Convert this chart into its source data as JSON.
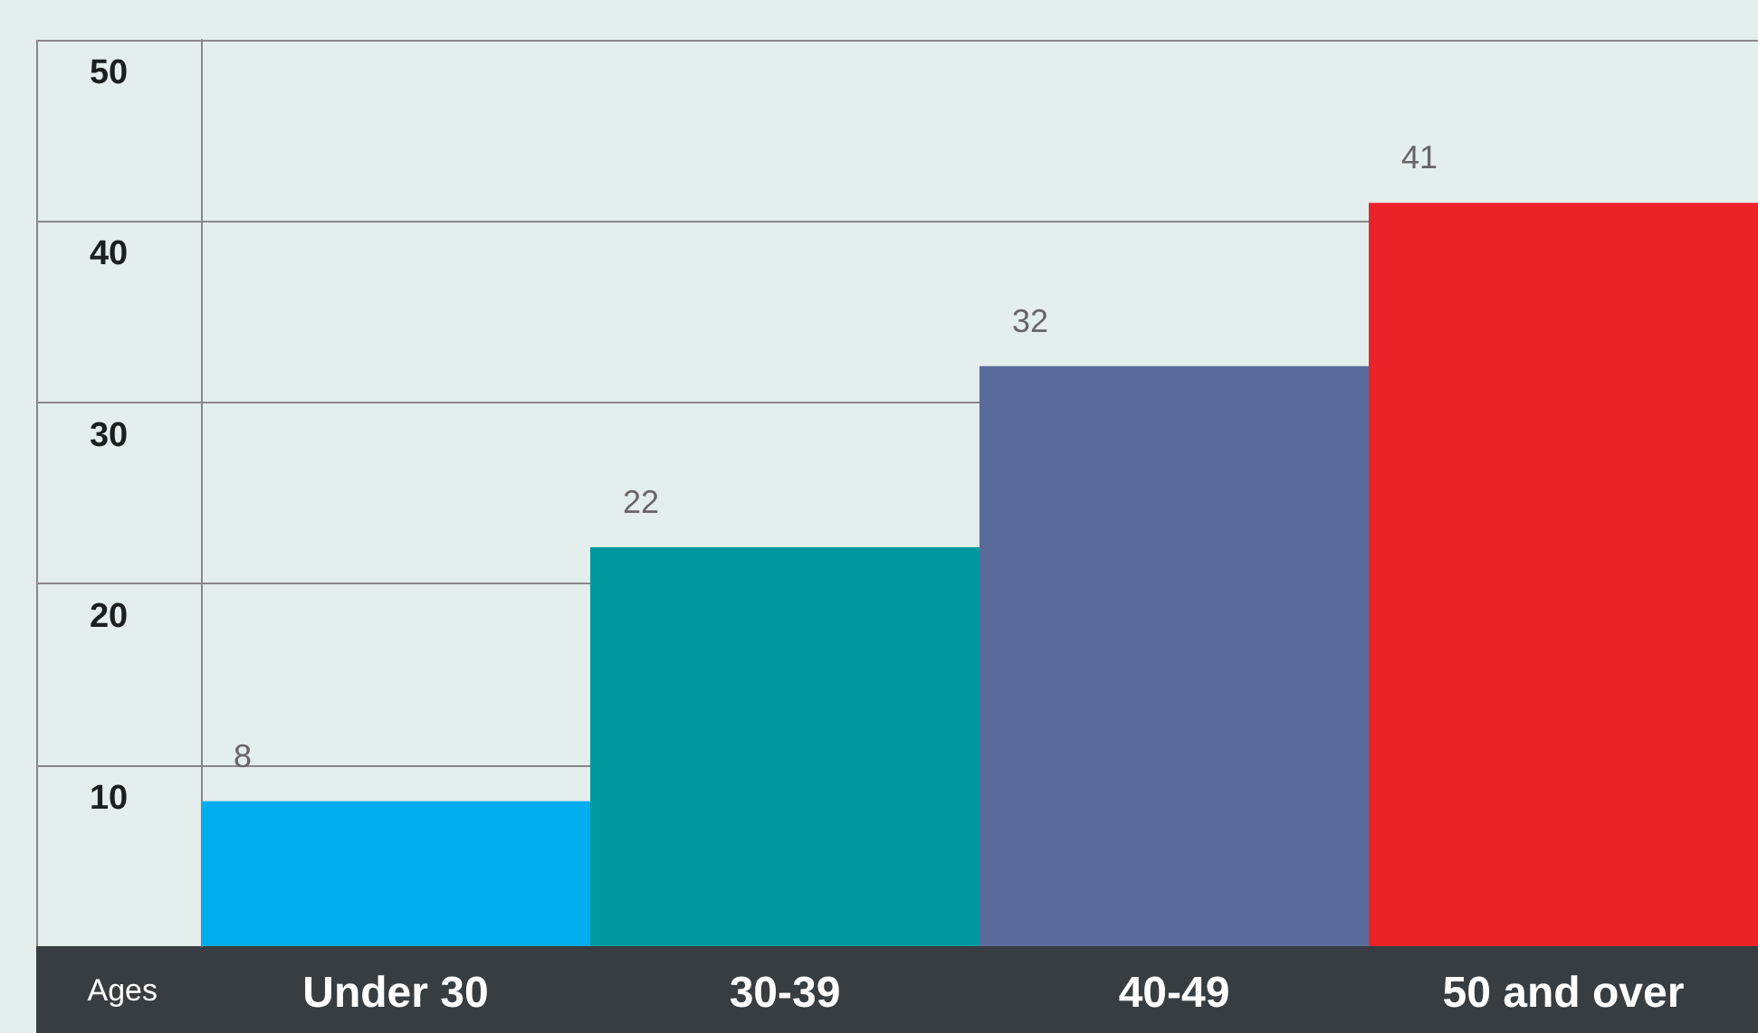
{
  "chart_data": {
    "type": "bar",
    "xlabel": "Ages",
    "categories": [
      "Under 30",
      "30-39",
      "40-49",
      "50 and over"
    ],
    "values": [
      8,
      22,
      32,
      41
    ],
    "colors": [
      "#00adee",
      "#0099a0",
      "#5b6b9c",
      "#ec2229"
    ],
    "ylim": [
      0,
      50
    ],
    "yticks": [
      10,
      20,
      30,
      40,
      50
    ],
    "grid": "y",
    "data_labels": true
  }
}
